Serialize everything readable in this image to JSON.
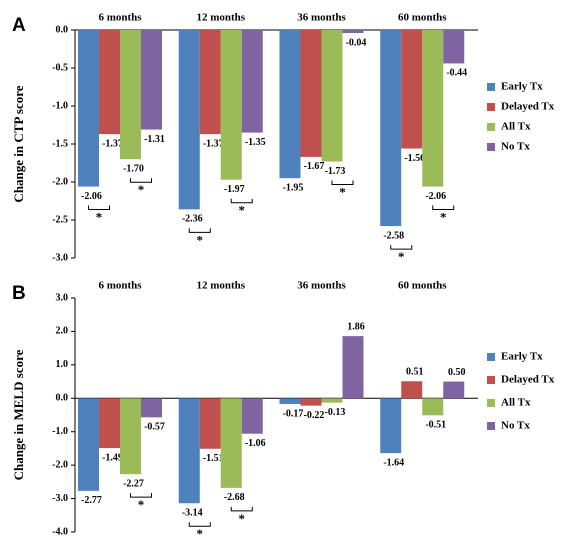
{
  "chart_data": [
    {
      "type": "bar",
      "panel_label": "A",
      "ylabel": "Change in CTP score",
      "categories": [
        "6 months",
        "12 months",
        "36 months",
        "60 months"
      ],
      "series": [
        {
          "name": "Early Tx",
          "color": "#4f81bd",
          "values": [
            -2.06,
            -2.36,
            -1.95,
            -2.58
          ],
          "value_labels": [
            "-2.06",
            "-2.36",
            "-1.95",
            "-2.58"
          ]
        },
        {
          "name": "Delayed Tx",
          "color": "#c0504d",
          "values": [
            -1.37,
            -1.37,
            -1.67,
            -1.56
          ],
          "value_labels": [
            "-1.37",
            "-1.37",
            "-1.67",
            "-1.56"
          ]
        },
        {
          "name": "All Tx",
          "color": "#9bbb59",
          "values": [
            -1.7,
            -1.97,
            -1.73,
            -2.06
          ],
          "value_labels": [
            "-1.70",
            "-1.97",
            "-1.73",
            "-2.06"
          ]
        },
        {
          "name": "No Tx",
          "color": "#8064a2",
          "values": [
            -1.31,
            -1.35,
            -0.04,
            -0.44
          ],
          "value_labels": [
            "-1.31",
            "-1.35",
            "-0.04",
            "-0.44"
          ]
        }
      ],
      "ylim": [
        -3,
        0
      ],
      "yticks": [
        {
          "value": 0,
          "label": "0.0"
        },
        {
          "value": -0.5,
          "label": "-0.5"
        },
        {
          "value": -1,
          "label": "-1.0"
        },
        {
          "value": -1.5,
          "label": "-1.5"
        },
        {
          "value": -2,
          "label": "-2.0"
        },
        {
          "value": -2.5,
          "label": "-2.5"
        },
        {
          "value": -3,
          "label": "-3.0"
        }
      ],
      "legend": "right",
      "annotations": [
        {
          "text": "*",
          "category": "6 months",
          "between": [
            "Early Tx",
            "Delayed Tx"
          ]
        },
        {
          "text": "*",
          "category": "6 months",
          "between": [
            "All Tx",
            "No Tx"
          ]
        },
        {
          "text": "*",
          "category": "12 months",
          "between": [
            "Early Tx",
            "Delayed Tx"
          ]
        },
        {
          "text": "*",
          "category": "12 months",
          "between": [
            "All Tx",
            "No Tx"
          ]
        },
        {
          "text": "*",
          "category": "36 months",
          "between": [
            "All Tx",
            "No Tx"
          ]
        },
        {
          "text": "*",
          "category": "60 months",
          "between": [
            "Early Tx",
            "Delayed Tx"
          ]
        },
        {
          "text": "*",
          "category": "60 months",
          "between": [
            "All Tx",
            "No Tx"
          ]
        }
      ]
    },
    {
      "type": "bar",
      "panel_label": "B",
      "ylabel": "Change in MELD score",
      "categories": [
        "6 months",
        "12 months",
        "36 months",
        "60 months"
      ],
      "series": [
        {
          "name": "Early Tx",
          "color": "#4f81bd",
          "values": [
            -2.77,
            -3.14,
            -0.17,
            -1.64
          ],
          "value_labels": [
            "-2.77",
            "-3.14",
            "-0.17",
            "-1.64"
          ]
        },
        {
          "name": "Delayed Tx",
          "color": "#c0504d",
          "values": [
            -1.49,
            -1.51,
            -0.22,
            0.51
          ],
          "value_labels": [
            "-1.49",
            "-1.51",
            "-0.22",
            "0.51"
          ]
        },
        {
          "name": "All Tx",
          "color": "#9bbb59",
          "values": [
            -2.27,
            -2.68,
            -0.13,
            -0.51
          ],
          "value_labels": [
            "-2.27",
            "-2.68",
            "-0.13",
            "-0.51"
          ]
        },
        {
          "name": "No Tx",
          "color": "#8064a2",
          "values": [
            -0.57,
            -1.06,
            1.86,
            0.5
          ],
          "value_labels": [
            "-0.57",
            "-1.06",
            "1.86",
            "0.50"
          ]
        }
      ],
      "ylim": [
        -4,
        3
      ],
      "yticks": [
        {
          "value": 3,
          "label": "3.0"
        },
        {
          "value": 2,
          "label": "2.0"
        },
        {
          "value": 1,
          "label": "1.0"
        },
        {
          "value": 0,
          "label": "0.0"
        },
        {
          "value": -1,
          "label": "-1.0"
        },
        {
          "value": -2,
          "label": "-2.0"
        },
        {
          "value": -3,
          "label": "-3.0"
        },
        {
          "value": -4,
          "label": "-4.0"
        }
      ],
      "legend": "right",
      "annotations": [
        {
          "text": "*",
          "category": "6 months",
          "between": [
            "All Tx",
            "No Tx"
          ]
        },
        {
          "text": "*",
          "category": "12 months",
          "between": [
            "Early Tx",
            "Delayed Tx"
          ]
        },
        {
          "text": "*",
          "category": "12 months",
          "between": [
            "All Tx",
            "No Tx"
          ]
        }
      ]
    }
  ]
}
